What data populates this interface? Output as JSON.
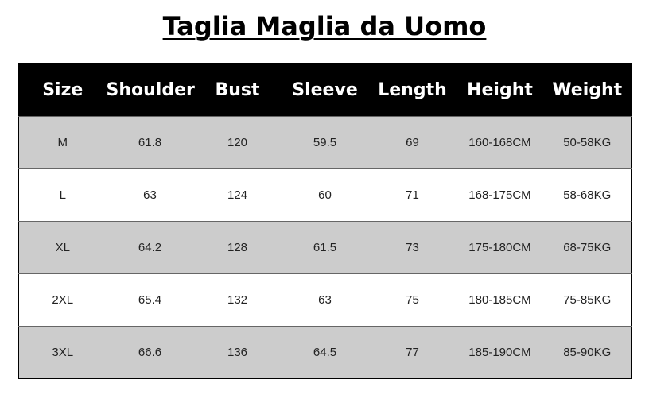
{
  "title": "Taglia Maglia da Uomo",
  "table": {
    "headers": [
      "Size",
      "Shoulder",
      "Bust",
      "Sleeve",
      "Length",
      "Height",
      "Weight"
    ],
    "rows": [
      [
        "M",
        "61.8",
        "120",
        "59.5",
        "69",
        "160-168CM",
        "50-58KG"
      ],
      [
        "L",
        "63",
        "124",
        "60",
        "71",
        "168-175CM",
        "58-68KG"
      ],
      [
        "XL",
        "64.2",
        "128",
        "61.5",
        "73",
        "175-180CM",
        "68-75KG"
      ],
      [
        "2XL",
        "65.4",
        "132",
        "63",
        "75",
        "180-185CM",
        "75-85KG"
      ],
      [
        "3XL",
        "66.6",
        "136",
        "64.5",
        "77",
        "185-190CM",
        "85-90KG"
      ]
    ]
  },
  "colors": {
    "header_bg": "#000000",
    "row_alt_bg": "#cccccc",
    "row_bg": "#ffffff"
  }
}
